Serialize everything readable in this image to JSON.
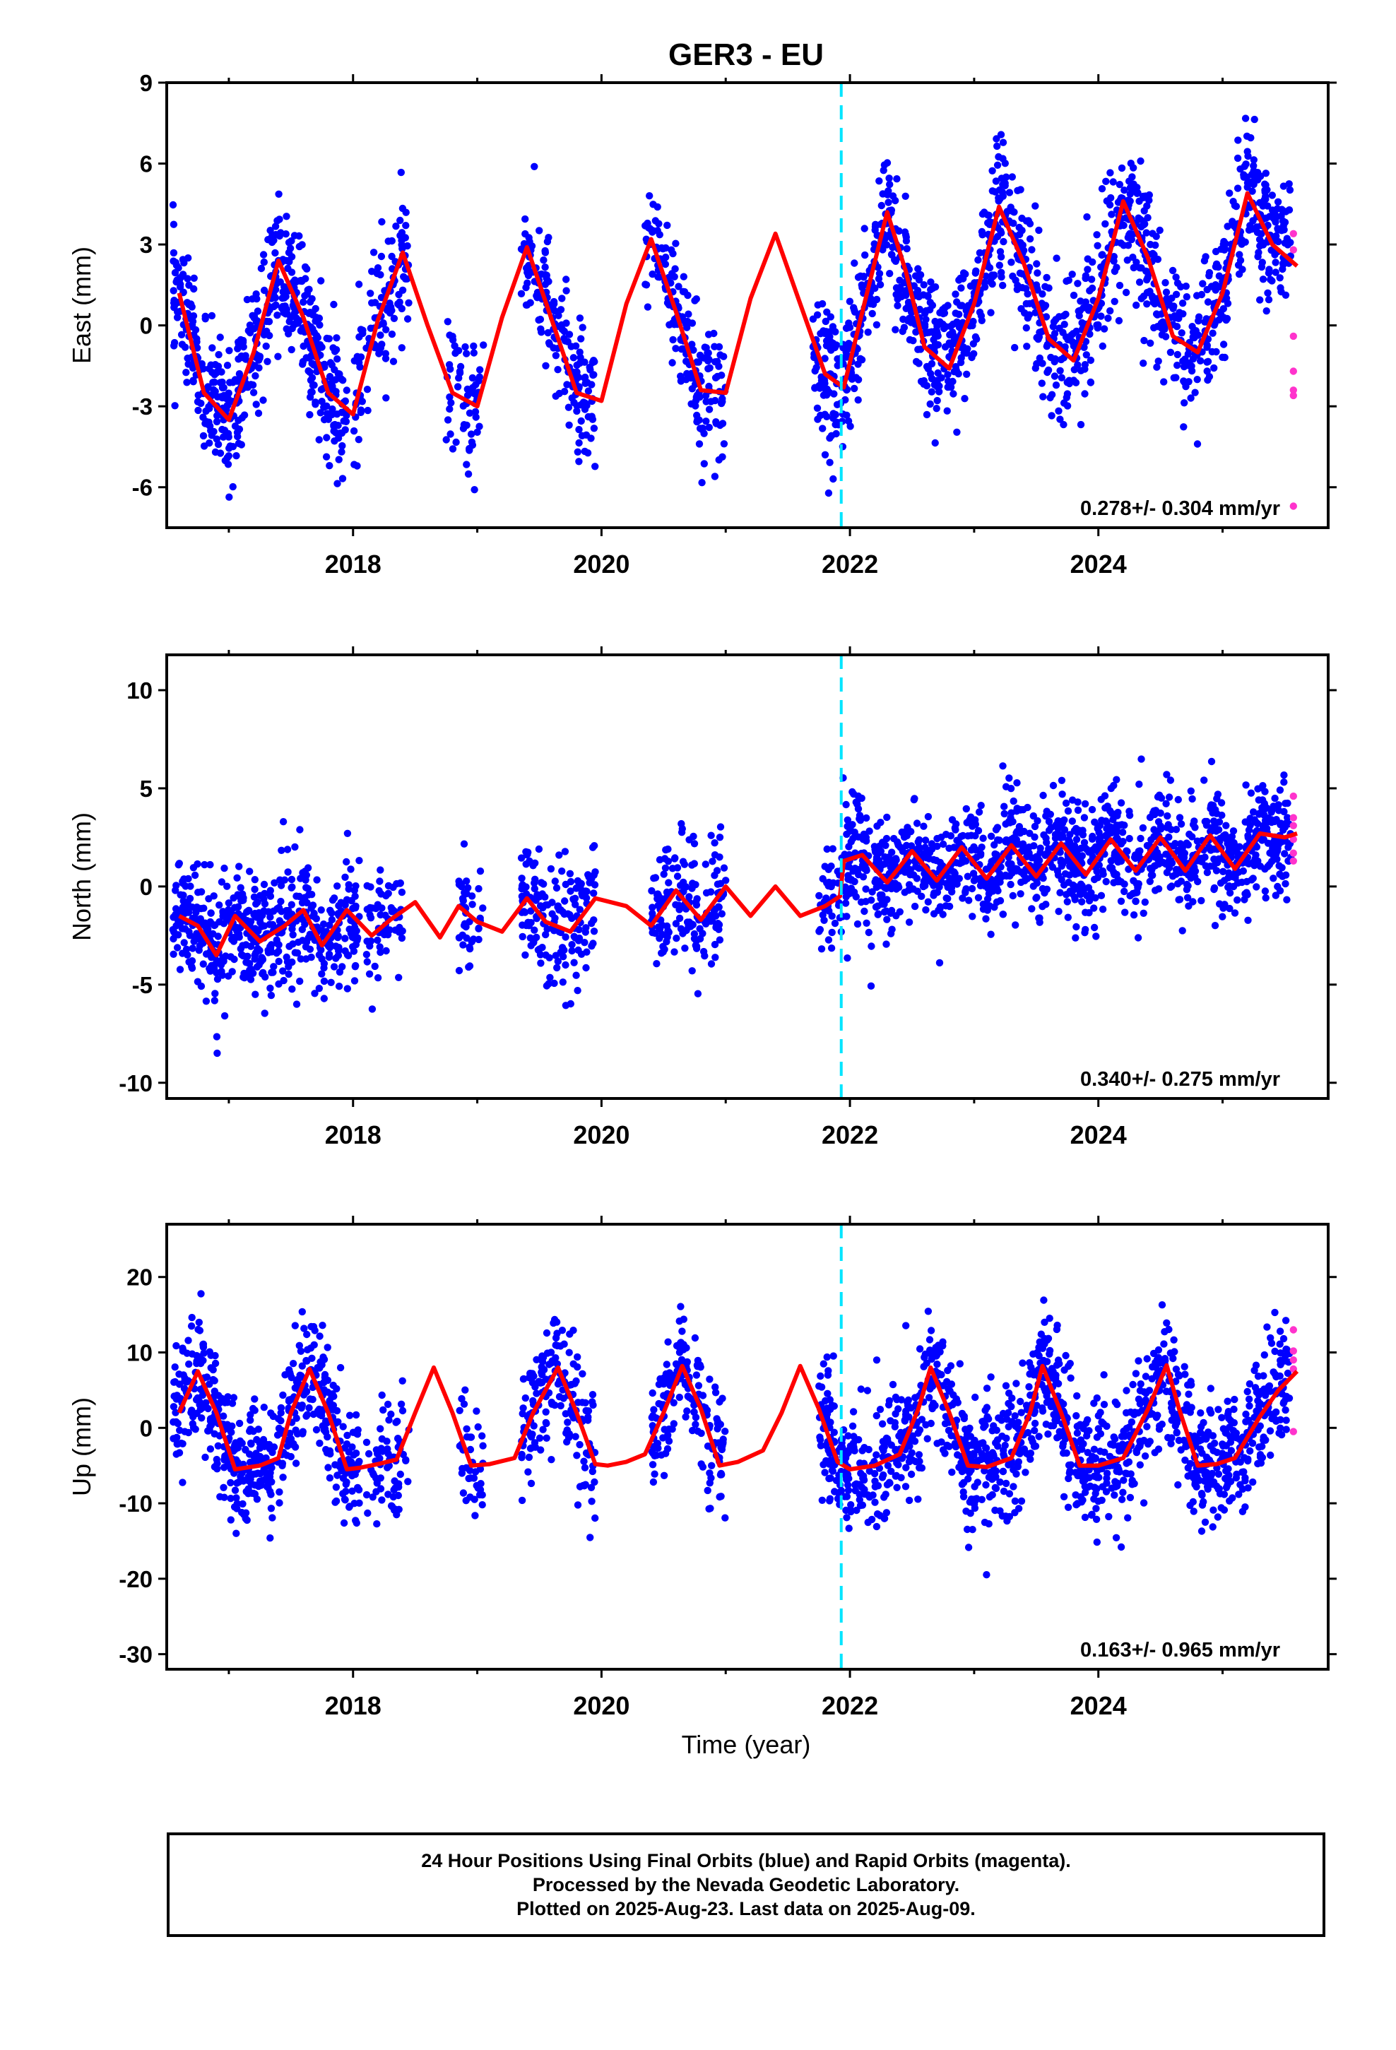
{
  "chart_data": {
    "type": "scatter",
    "title": "GER3 - EU",
    "xlabel": "Time (year)",
    "x_ticks": [
      "2018",
      "2020",
      "2022",
      "2024"
    ],
    "xlim": [
      2016.5,
      2025.85
    ],
    "equipment_change": 2021.93,
    "colors": {
      "final": "#0000ff",
      "rapid": "#ff33cc",
      "model": "#ff0000",
      "break": "#00e5ff"
    },
    "legend_text": [
      "24 Hour Positions Using Final Orbits (blue) and Rapid Orbits (magenta).",
      "Processed by the Nevada Geodetic Laboratory.",
      "Plotted on 2025-Aug-23. Last data on 2025-Aug-09."
    ],
    "panels": [
      {
        "component": "East",
        "ylabel": "East (mm)",
        "ylim": [
          -7.5,
          9
        ],
        "y_ticks": [
          "9",
          "6",
          "3",
          "0",
          "-3",
          "-6"
        ],
        "y_tick_values": [
          9,
          6,
          3,
          0,
          -3,
          -6
        ],
        "rate": "0.278+/- 0.304 mm/yr",
        "model_t": [
          2016.6,
          2016.8,
          2017.0,
          2017.2,
          2017.4,
          2017.6,
          2017.8,
          2018.0,
          2018.2,
          2018.4,
          2018.6,
          2018.8,
          2019.0,
          2019.2,
          2019.4,
          2019.6,
          2019.8,
          2020.0,
          2020.2,
          2020.4,
          2020.6,
          2020.8,
          2021.0,
          2021.2,
          2021.4,
          2021.6,
          2021.8,
          2021.95,
          2022.1,
          2022.3,
          2022.45,
          2022.6,
          2022.8,
          2023.0,
          2023.2,
          2023.4,
          2023.6,
          2023.8,
          2024.0,
          2024.2,
          2024.4,
          2024.6,
          2024.8,
          2025.0,
          2025.2,
          2025.4,
          2025.6
        ],
        "model_y": [
          1.2,
          -2.5,
          -3.5,
          -1.0,
          2.4,
          0.3,
          -2.5,
          -3.3,
          0.2,
          2.7,
          0.0,
          -2.5,
          -3.0,
          0.3,
          2.9,
          0.2,
          -2.5,
          -2.8,
          0.8,
          3.2,
          0.5,
          -2.4,
          -2.5,
          1.0,
          3.4,
          0.8,
          -1.8,
          -2.3,
          0.5,
          4.2,
          2.0,
          -0.8,
          -1.6,
          0.8,
          4.4,
          2.3,
          -0.5,
          -1.3,
          1.0,
          4.6,
          2.5,
          -0.4,
          -1.0,
          1.2,
          4.9,
          3.0,
          2.2
        ],
        "final_segments": [
          {
            "t0": 2016.55,
            "t1": 2017.95,
            "amp": 3.0,
            "offset": -0.6,
            "sd": 1.2,
            "n": 520
          },
          {
            "t0": 2018.0,
            "t1": 2018.45,
            "amp": 3.0,
            "offset": -0.3,
            "sd": 1.3,
            "n": 120
          },
          {
            "t0": 2018.75,
            "t1": 2019.05,
            "amp": 3.0,
            "offset": -0.5,
            "sd": 1.3,
            "n": 60
          },
          {
            "t0": 2019.35,
            "t1": 2019.95,
            "amp": 3.0,
            "offset": -0.2,
            "sd": 1.2,
            "n": 170
          },
          {
            "t0": 2020.35,
            "t1": 2021.0,
            "amp": 3.0,
            "offset": 0.0,
            "sd": 1.2,
            "n": 180
          },
          {
            "t0": 2021.7,
            "t1": 2025.55,
            "amp": 3.0,
            "offset": 1.1,
            "sd": 1.3,
            "n": 1250
          }
        ],
        "rapid_points": [
          [
            2025.57,
            3.4
          ],
          [
            2025.57,
            2.8
          ],
          [
            2025.57,
            -0.4
          ],
          [
            2025.57,
            -1.7
          ],
          [
            2025.57,
            -2.4
          ],
          [
            2025.57,
            -2.6
          ],
          [
            2025.57,
            -6.7
          ]
        ]
      },
      {
        "component": "North",
        "ylabel": "North (mm)",
        "ylim": [
          -10.8,
          11.8
        ],
        "y_ticks": [
          "10",
          "5",
          "0",
          "-5",
          "-10"
        ],
        "y_tick_values": [
          10,
          5,
          0,
          -5,
          -10
        ],
        "rate": "0.340+/- 0.275 mm/yr",
        "model_t": [
          2016.6,
          2016.75,
          2016.9,
          2017.05,
          2017.25,
          2017.45,
          2017.6,
          2017.75,
          2017.95,
          2018.15,
          2018.3,
          2018.5,
          2018.7,
          2018.85,
          2019.0,
          2019.2,
          2019.4,
          2019.55,
          2019.75,
          2019.95,
          2020.2,
          2020.4,
          2020.6,
          2020.8,
          2021.0,
          2021.2,
          2021.4,
          2021.6,
          2021.8,
          2021.92,
          2021.95,
          2022.1,
          2022.3,
          2022.5,
          2022.7,
          2022.9,
          2023.1,
          2023.3,
          2023.5,
          2023.7,
          2023.9,
          2024.1,
          2024.3,
          2024.5,
          2024.7,
          2024.9,
          2025.1,
          2025.3,
          2025.5,
          2025.6
        ],
        "model_y": [
          -1.5,
          -2.0,
          -3.5,
          -1.5,
          -2.8,
          -2.0,
          -1.2,
          -3.0,
          -1.2,
          -2.5,
          -1.7,
          -0.8,
          -2.6,
          -1.0,
          -1.8,
          -2.3,
          -0.6,
          -1.8,
          -2.3,
          -0.6,
          -1.0,
          -2.0,
          -0.2,
          -1.7,
          0.0,
          -1.5,
          0.0,
          -1.5,
          -1.0,
          -0.5,
          1.3,
          1.6,
          0.2,
          1.8,
          0.3,
          2.0,
          0.4,
          2.1,
          0.5,
          2.2,
          0.6,
          2.4,
          0.8,
          2.5,
          0.8,
          2.6,
          0.9,
          2.7,
          2.5,
          2.7
        ],
        "final_segments": [
          {
            "t0": 2016.55,
            "t1": 2018.05,
            "amp": 0.6,
            "offset": -2.2,
            "sd": 1.5,
            "n": 520
          },
          {
            "t0": 2018.1,
            "t1": 2018.4,
            "amp": 0.6,
            "offset": -1.8,
            "sd": 1.5,
            "n": 60
          },
          {
            "t0": 2018.85,
            "t1": 2019.05,
            "amp": 0.6,
            "offset": -1.7,
            "sd": 1.5,
            "n": 40
          },
          {
            "t0": 2019.35,
            "t1": 2019.95,
            "amp": 0.6,
            "offset": -1.3,
            "sd": 1.6,
            "n": 170
          },
          {
            "t0": 2020.4,
            "t1": 2021.0,
            "amp": 0.6,
            "offset": -1.0,
            "sd": 1.6,
            "n": 170
          },
          {
            "t0": 2021.75,
            "t1": 2021.92,
            "amp": 0.6,
            "offset": -0.8,
            "sd": 1.6,
            "n": 40
          },
          {
            "t0": 2021.93,
            "t1": 2022.2,
            "amp": 0.6,
            "offset": 3.2,
            "sd": 2.0,
            "n": 90
          },
          {
            "t0": 2022.2,
            "t1": 2025.55,
            "amp": 0.7,
            "offset": 1.6,
            "sd": 1.4,
            "n": 1150
          }
        ],
        "rapid_points": [
          [
            2025.57,
            4.6
          ],
          [
            2025.57,
            3.5
          ],
          [
            2025.57,
            3.1
          ],
          [
            2025.57,
            2.4
          ],
          [
            2025.57,
            1.7
          ],
          [
            2025.57,
            1.3
          ]
        ]
      },
      {
        "component": "Up",
        "ylabel": "Up (mm)",
        "ylim": [
          -32,
          27
        ],
        "y_ticks": [
          "20",
          "10",
          "0",
          "-10",
          "-20",
          "-30"
        ],
        "y_tick_values": [
          20,
          10,
          0,
          -10,
          -20,
          -30
        ],
        "rate": "0.163+/- 0.965 mm/yr",
        "model_t": [
          2016.6,
          2016.75,
          2016.9,
          2017.05,
          2017.25,
          2017.4,
          2017.5,
          2017.65,
          2017.8,
          2017.95,
          2018.05,
          2018.2,
          2018.35,
          2018.5,
          2018.65,
          2018.8,
          2018.95,
          2019.1,
          2019.3,
          2019.45,
          2019.65,
          2019.8,
          2019.95,
          2020.05,
          2020.2,
          2020.35,
          2020.5,
          2020.65,
          2020.8,
          2020.95,
          2021.1,
          2021.3,
          2021.45,
          2021.6,
          2021.75,
          2021.9,
          2022.0,
          2022.2,
          2022.4,
          2022.55,
          2022.65,
          2022.8,
          2022.95,
          2023.1,
          2023.3,
          2023.45,
          2023.55,
          2023.7,
          2023.85,
          2024.0,
          2024.2,
          2024.4,
          2024.55,
          2024.65,
          2024.8,
          2024.95,
          2025.1,
          2025.3,
          2025.45,
          2025.6
        ],
        "model_y": [
          2.0,
          7.5,
          2.0,
          -5.5,
          -5.0,
          -4.0,
          2.0,
          7.8,
          2.0,
          -5.5,
          -5.3,
          -4.8,
          -4.2,
          2.0,
          8.0,
          2.0,
          -5.0,
          -4.8,
          -4.0,
          2.0,
          8.0,
          2.0,
          -4.8,
          -5.0,
          -4.5,
          -3.5,
          2.0,
          8.2,
          2.5,
          -5.0,
          -4.5,
          -3.0,
          2.0,
          8.2,
          2.5,
          -4.5,
          -5.5,
          -5.0,
          -3.5,
          2.5,
          8.0,
          2.0,
          -5.0,
          -5.2,
          -4.0,
          2.0,
          8.2,
          2.0,
          -5.0,
          -5.0,
          -4.0,
          2.5,
          8.3,
          2.5,
          -5.0,
          -4.8,
          -4.0,
          1.5,
          5.0,
          7.5
        ],
        "final_segments": [
          {
            "t0": 2016.55,
            "t1": 2018.05,
            "amp": 7.0,
            "offset": -0.5,
            "sd": 4.0,
            "n": 520
          },
          {
            "t0": 2018.1,
            "t1": 2018.45,
            "amp": 7.0,
            "offset": -1.0,
            "sd": 4.0,
            "n": 70
          },
          {
            "t0": 2018.85,
            "t1": 2019.05,
            "amp": 7.0,
            "offset": -1.0,
            "sd": 4.0,
            "n": 40
          },
          {
            "t0": 2019.35,
            "t1": 2019.95,
            "amp": 7.0,
            "offset": 1.0,
            "sd": 4.0,
            "n": 170
          },
          {
            "t0": 2020.4,
            "t1": 2021.0,
            "amp": 7.0,
            "offset": 1.0,
            "sd": 4.0,
            "n": 170
          },
          {
            "t0": 2021.75,
            "t1": 2025.55,
            "amp": 7.0,
            "offset": -0.5,
            "sd": 4.2,
            "n": 1250
          }
        ],
        "rapid_points": [
          [
            2025.57,
            13.0
          ],
          [
            2025.57,
            10.2
          ],
          [
            2025.57,
            9.0
          ],
          [
            2025.57,
            7.8
          ],
          [
            2025.57,
            -0.5
          ]
        ]
      }
    ]
  }
}
